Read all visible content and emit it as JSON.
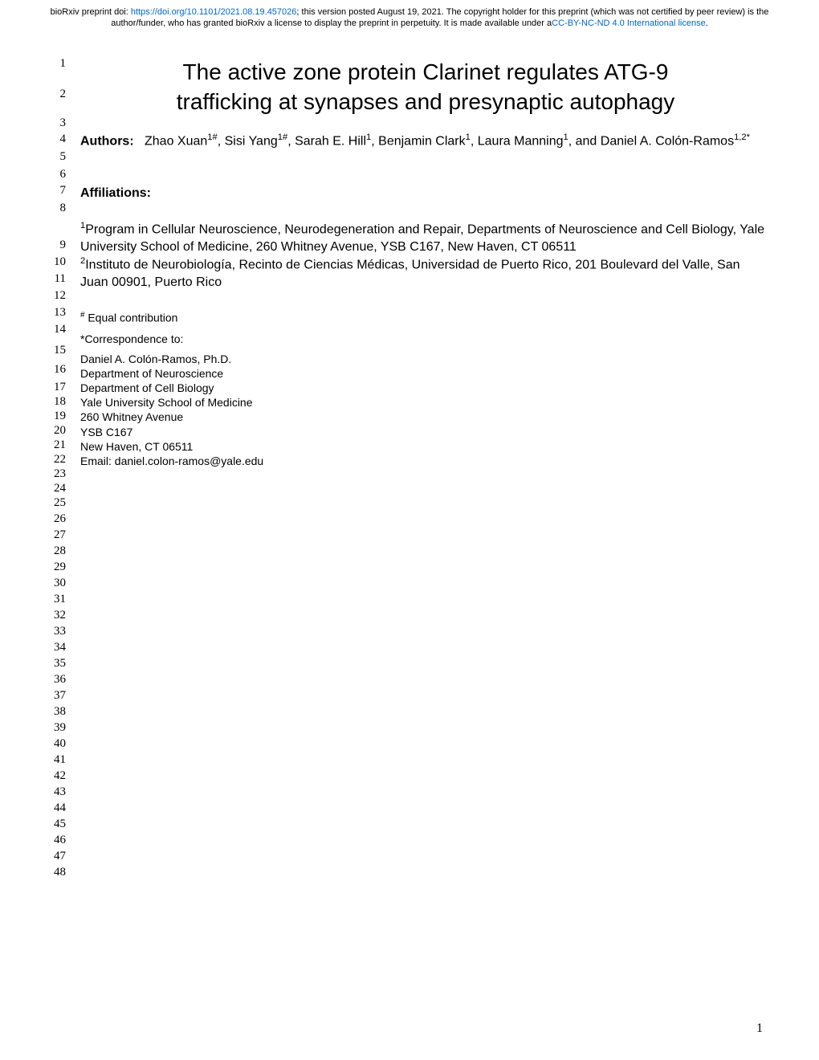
{
  "header": {
    "prefix": "bioRxiv preprint doi: ",
    "doi_link": "https://doi.org/10.1101/2021.08.19.457026",
    "after_doi": "; this version posted August 19, 2021. The copyright holder for this preprint (which was not certified by peer review) is the author/funder, who has granted bioRxiv a license to display the preprint in perpetuity. It is made available under a",
    "license_link": "CC-BY-NC-ND 4.0 International license",
    "suffix": "."
  },
  "title": {
    "line1": "The active zone protein Clarinet regulates ATG-9",
    "line2": "trafficking at synapses and presynaptic autophagy"
  },
  "authors": {
    "label": "Authors:",
    "text_parts": [
      {
        "t": "Zhao Xuan",
        "sup": "1#"
      },
      {
        "t": ", Sisi Yang",
        "sup": "1#"
      },
      {
        "t": ", Sarah E. Hill",
        "sup": "1"
      },
      {
        "t": ", Benjamin Clark",
        "sup": "1"
      },
      {
        "t": ", Laura Manning",
        "sup": "1"
      },
      {
        "t": ", and Daniel A. Colón-Ramos",
        "sup": "1,2*"
      }
    ]
  },
  "affiliations_heading": "Affiliations:",
  "affiliations": [
    {
      "sup": "1",
      "text": "Program in Cellular Neuroscience, Neurodegeneration and Repair, Departments of Neuroscience and Cell Biology, Yale University School of Medicine, 260 Whitney Avenue, YSB C167, New Haven, CT 06511"
    },
    {
      "sup": "2",
      "text": "Instituto de Neurobiología, Recinto de Ciencias Médicas, Universidad de Puerto Rico, 201 Boulevard del Valle, San Juan 00901, Puerto Rico"
    }
  ],
  "equal_contribution": {
    "sup": "#",
    "text": " Equal contribution"
  },
  "correspondence_label": "*Correspondence to:",
  "correspondence": [
    "Daniel A. Colón-Ramos, Ph.D.",
    "Department of Neuroscience",
    "Department of Cell Biology",
    "Yale University School of Medicine",
    "260 Whitney Avenue",
    "YSB C167",
    "New Haven, CT 06511",
    "Email: daniel.colon-ramos@yale.edu"
  ],
  "line_numbers": [
    "1",
    "2",
    "3",
    "4",
    "5",
    "6",
    "7",
    "8",
    "9",
    "10",
    "11",
    "12",
    "13",
    "14",
    "15",
    "16",
    "17",
    "18",
    "19",
    "20",
    "21",
    "22",
    "23",
    "24",
    "25",
    "26",
    "27",
    "28",
    "29",
    "30",
    "31",
    "32",
    "33",
    "34",
    "35",
    "36",
    "37",
    "38",
    "39",
    "40",
    "41",
    "42",
    "43",
    "44",
    "45",
    "46",
    "47",
    "48"
  ],
  "page_number": "1",
  "colors": {
    "link": "#0066cc",
    "text": "#000000",
    "background": "#ffffff"
  }
}
